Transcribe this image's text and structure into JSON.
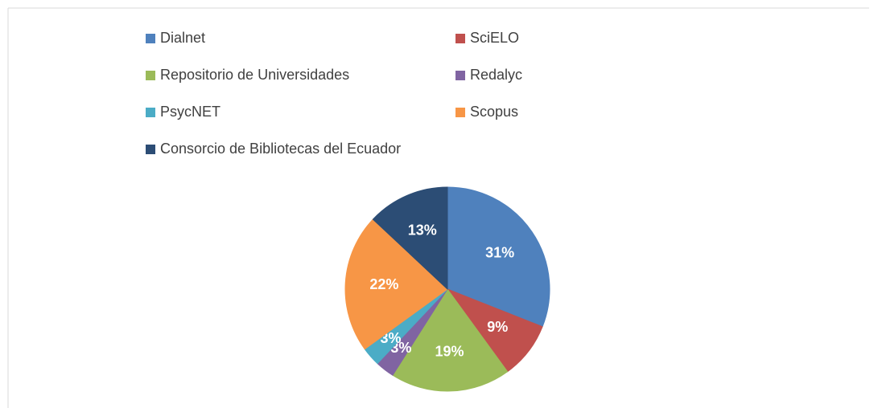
{
  "chart_data": {
    "type": "pie",
    "categories": [
      "Dialnet",
      "SciELO",
      "Repositorio de Universidades",
      "Redalyc",
      "PsycNET",
      "Scopus",
      "Consorcio de Bibliotecas del Ecuador"
    ],
    "values": [
      31,
      9,
      19,
      3,
      3,
      22,
      13
    ],
    "value_labels": [
      "31%",
      "9%",
      "19%",
      "3%",
      "3%",
      "22%",
      "13%"
    ],
    "colors": [
      "#4f81bd",
      "#c0504d",
      "#9bbb59",
      "#8064a2",
      "#4bacc6",
      "#f79646",
      "#2c4d75"
    ]
  }
}
